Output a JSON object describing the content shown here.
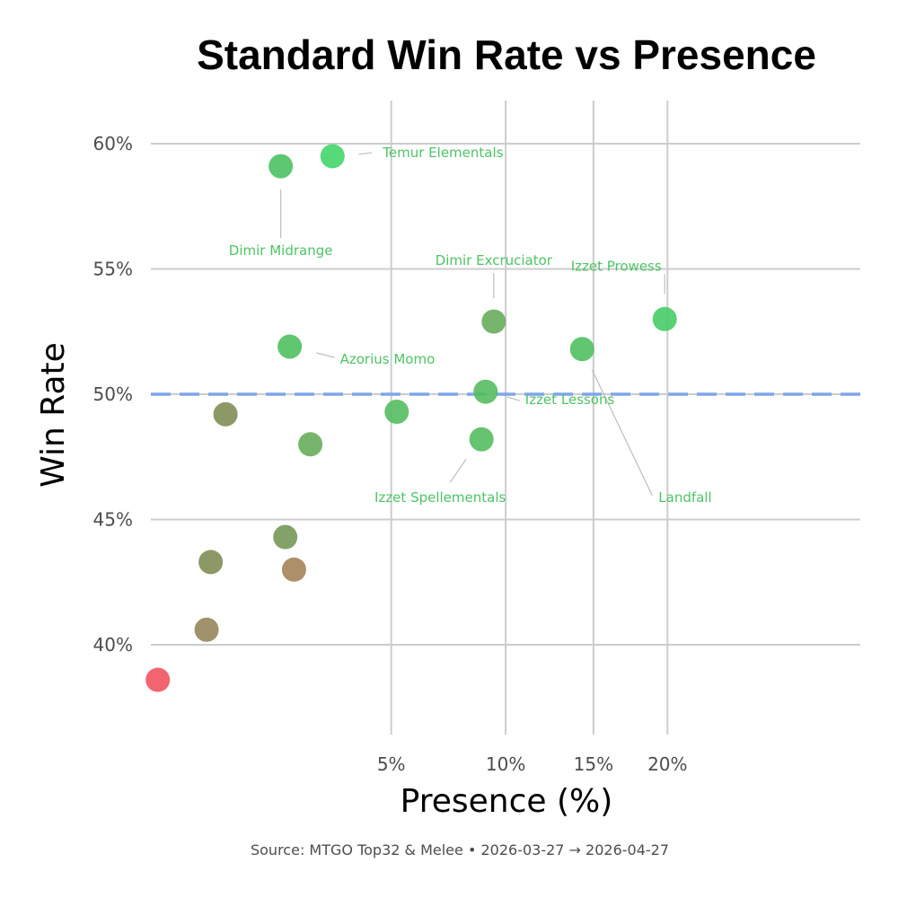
{
  "chart_data": {
    "type": "scatter",
    "title": "Standard Win Rate vs Presence",
    "xlabel": "Presence (%)",
    "ylabel": "Win Rate",
    "caption": "Source: MTGO Top32 & Melee  •  2026-03-27 → 2026-04-27",
    "x_scale": "sqrt",
    "xlim": [
      0.3,
      22
    ],
    "ylim": [
      36.8,
      62.0
    ],
    "x_ticks": [
      5,
      10,
      15,
      20
    ],
    "x_tick_labels": [
      "5%",
      "10%",
      "15%",
      "20%"
    ],
    "y_ticks": [
      40,
      45,
      50,
      55,
      60
    ],
    "y_tick_labels": [
      "40%",
      "45%",
      "50%",
      "55%",
      "60%"
    ],
    "grid": true,
    "reference_line": {
      "y": 50,
      "style": "dashed",
      "color": "#7ea6e8"
    },
    "points": [
      {
        "label": "Temur Elementals",
        "x": 3.1,
        "y": 59.5,
        "color": "#43d56a"
      },
      {
        "label": "Dimir Midrange",
        "x": 1.8,
        "y": 59.1,
        "color": "#4dc163"
      },
      {
        "label": "Izzet Prowess",
        "x": 19.8,
        "y": 53.0,
        "color": "#46cd66"
      },
      {
        "label": "Dimir Excruciator",
        "x": 9.4,
        "y": 52.9,
        "color": "#67ad5b"
      },
      {
        "label": "Azorius Momo",
        "x": 2.0,
        "y": 51.9,
        "color": "#4fc061"
      },
      {
        "label": "Landfall",
        "x": 14.3,
        "y": 51.8,
        "color": "#4fc061"
      },
      {
        "label": "Izzet Lessons",
        "x": 9.0,
        "y": 50.1,
        "color": "#55bc60"
      },
      {
        "label": "",
        "x": 5.2,
        "y": 49.3,
        "color": "#55bc60"
      },
      {
        "label": "",
        "x": 0.8,
        "y": 49.2,
        "color": "#7f8e55"
      },
      {
        "label": "Izzet Spellementals",
        "x": 8.8,
        "y": 48.2,
        "color": "#55bc60"
      },
      {
        "label": "",
        "x": 2.5,
        "y": 48.0,
        "color": "#67ad5b"
      },
      {
        "label": "",
        "x": 1.9,
        "y": 44.3,
        "color": "#74985a"
      },
      {
        "label": "",
        "x": 0.6,
        "y": 43.3,
        "color": "#7f8e55"
      },
      {
        "label": "",
        "x": 2.1,
        "y": 43.0,
        "color": "#a4845a"
      },
      {
        "label": "",
        "x": 0.55,
        "y": 40.6,
        "color": "#95865c"
      },
      {
        "label": "",
        "x": 0.12,
        "y": 38.6,
        "color": "#f1535f"
      }
    ]
  }
}
